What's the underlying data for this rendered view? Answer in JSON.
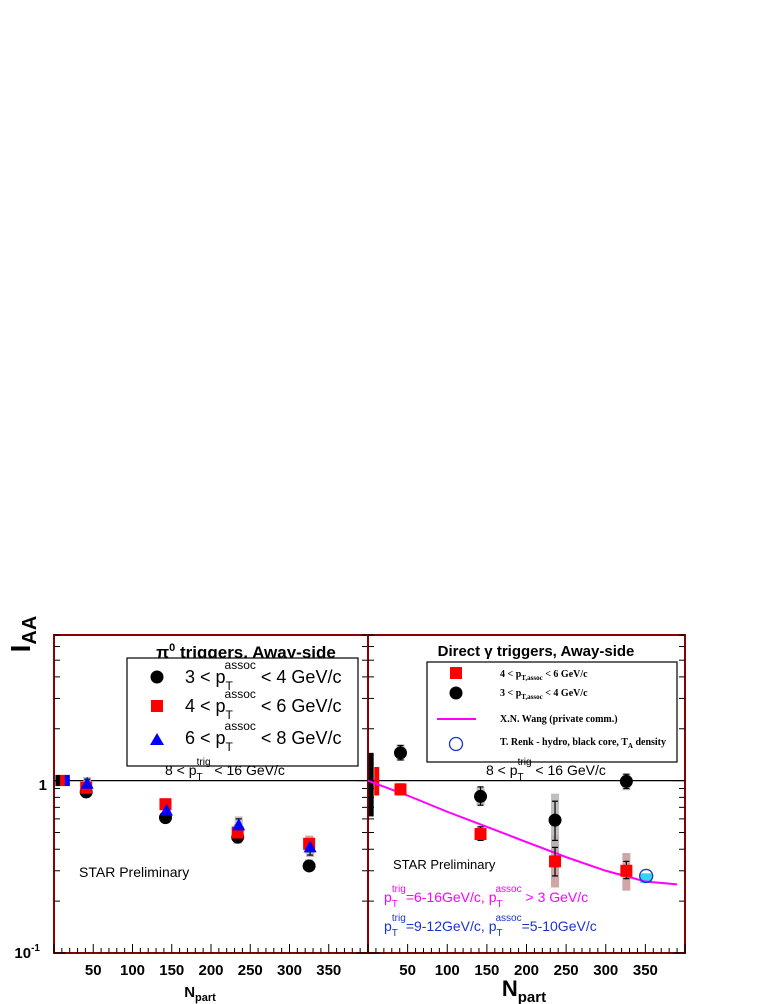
{
  "colors": {
    "frame": "#8b0000",
    "black_series": "#000000",
    "red_series": "#ff0000",
    "blue_series": "#0000ff",
    "magenta_curve": "#ff00ff",
    "renk_open": "#1a33cc",
    "renk_cyan": "#33d6f0",
    "syst_gray": "#b4b4b4",
    "syst_red": "#c89696"
  },
  "chart_data": [
    {
      "type": "scatter",
      "title": {
        "prefix": "π",
        "sup": "0",
        "rest": " triggers, Away-side"
      },
      "ylabel": {
        "main": "I",
        "sub": "AA"
      },
      "xlabel": {
        "main": "N",
        "sub": "part"
      },
      "y_scale": "log",
      "ylim": [
        0.1,
        7
      ],
      "xlim": [
        0,
        400
      ],
      "x_tick_labels": [
        {
          "v": 50,
          "t": "50"
        },
        {
          "v": 100,
          "t": "100"
        },
        {
          "v": 150,
          "t": "150"
        },
        {
          "v": 200,
          "t": "200"
        },
        {
          "v": 250,
          "t": "250"
        },
        {
          "v": 300,
          "t": "300"
        },
        {
          "v": 350,
          "t": "350"
        }
      ],
      "y_tick_labels": [
        {
          "v": 1,
          "t": "1"
        },
        {
          "v": 0.1,
          "t": "10",
          "sup": "-1"
        }
      ],
      "reference_line": 1,
      "legend": {
        "placement": "top-right",
        "entries": [
          {
            "marker": "circle",
            "color": "#000000",
            "pre": "3 < p",
            "sub": "T",
            "sup": "assoc",
            "post": " < 4 GeV/c"
          },
          {
            "marker": "square",
            "color": "#ff0000",
            "pre": "4 < p",
            "sub": "T",
            "sup": "assoc",
            "post": " < 6 GeV/c"
          },
          {
            "marker": "triangle",
            "color": "#0000ff",
            "pre": "6 < p",
            "sub": "T",
            "sup": "assoc",
            "post": " < 8 GeV/c"
          }
        ]
      },
      "trigger_range": {
        "pre": "8 < p",
        "sub": "T",
        "sup": "trig",
        "post": " < 16 GeV/c"
      },
      "annotation": "STAR Preliminary",
      "norm_bars": [
        {
          "x": 5,
          "color": "#000000",
          "lo": 0.93,
          "hi": 1.08
        },
        {
          "x": 11,
          "color": "#ff0000",
          "lo": 0.93,
          "hi": 1.08
        },
        {
          "x": 17,
          "color": "#0000ff",
          "lo": 0.93,
          "hi": 1.08
        }
      ],
      "series": [
        {
          "name": "3 < pT assoc < 4 GeV/c",
          "marker": "circle",
          "color": "#000000",
          "points": [
            {
              "x": 41,
              "y": 0.86,
              "err": [
                0.8,
                0.92
              ],
              "sys": [
                0.8,
                0.93
              ]
            },
            {
              "x": 142,
              "y": 0.61,
              "err": [
                0.58,
                0.64
              ],
              "sys": [
                0.57,
                0.65
              ]
            },
            {
              "x": 234,
              "y": 0.47,
              "err": [
                0.44,
                0.5
              ],
              "sys": [
                0.43,
                0.52
              ]
            },
            {
              "x": 325,
              "y": 0.32,
              "err": [
                0.3,
                0.34
              ],
              "sys": [
                0.3,
                0.35
              ]
            }
          ]
        },
        {
          "name": "4 < pT assoc < 6 GeV/c",
          "marker": "square",
          "color": "#ff0000",
          "points": [
            {
              "x": 41,
              "y": 0.91,
              "err": [
                0.86,
                0.96
              ],
              "sys": [
                0.84,
                0.99
              ]
            },
            {
              "x": 142,
              "y": 0.73,
              "err": [
                0.7,
                0.76
              ],
              "sys": [
                0.68,
                0.78
              ]
            },
            {
              "x": 234,
              "y": 0.5,
              "err": [
                0.47,
                0.53
              ],
              "sys": [
                0.45,
                0.56
              ]
            },
            {
              "x": 325,
              "y": 0.43,
              "err": [
                0.4,
                0.46
              ],
              "sys": [
                0.38,
                0.48
              ]
            }
          ]
        },
        {
          "name": "6 < pT assoc < 8 GeV/c",
          "marker": "triangle",
          "color": "#0000ff",
          "points": [
            {
              "x": 41,
              "y": 0.96,
              "err": [
                0.9,
                1.02
              ],
              "sys": [
                0.88,
                1.05
              ]
            },
            {
              "x": 142,
              "y": 0.67,
              "err": [
                0.62,
                0.72
              ],
              "sys": [
                0.61,
                0.74
              ]
            },
            {
              "x": 234,
              "y": 0.55,
              "err": [
                0.5,
                0.6
              ],
              "sys": [
                0.49,
                0.62
              ]
            },
            {
              "x": 325,
              "y": 0.41,
              "err": [
                0.37,
                0.45
              ],
              "sys": [
                0.36,
                0.47
              ]
            }
          ]
        }
      ]
    },
    {
      "type": "scatter",
      "title": {
        "prefix": "Direct γ triggers, Away-side"
      },
      "xlabel": {
        "main": "N",
        "sub": "part"
      },
      "y_scale": "log",
      "ylim": [
        0.1,
        7
      ],
      "xlim": [
        0,
        400
      ],
      "x_tick_labels": [
        {
          "v": 50,
          "t": "50"
        },
        {
          "v": 100,
          "t": "100"
        },
        {
          "v": 150,
          "t": "150"
        },
        {
          "v": 200,
          "t": "200"
        },
        {
          "v": 250,
          "t": "250"
        },
        {
          "v": 300,
          "t": "300"
        },
        {
          "v": 350,
          "t": "350"
        }
      ],
      "reference_line": 1,
      "legend": {
        "placement": "top",
        "entries": [
          {
            "marker": "square",
            "color": "#ff0000",
            "pre": "4 < p",
            "sub": "T,assoc",
            "post": " < 6 GeV/c"
          },
          {
            "marker": "circle",
            "color": "#000000",
            "pre": "3 < p",
            "sub": "T,assoc",
            "post": " < 4 GeV/c"
          },
          {
            "marker": "line",
            "color": "#ff00ff",
            "pre": "X.N. Wang (private comm.)"
          },
          {
            "marker": "open-circle",
            "color": "#1a33cc",
            "pre": "T. Renk - hydro, black core, T",
            "sub": "A",
            "post": " density"
          }
        ]
      },
      "trigger_range": {
        "pre": "8 < p",
        "sub": "T",
        "sup": "trig",
        "post": " < 16 GeV/c"
      },
      "annotation": "STAR Preliminary",
      "conditions": [
        {
          "color": "#ff00ff",
          "a_pre": "p",
          "a_sub": "T",
          "a_sup": "trig",
          "a_post": "=6-16GeV/c, p",
          "b_sub": "T",
          "b_sup": "assoc",
          "b_post": " > 3 GeV/c"
        },
        {
          "color": "#1a33cc",
          "a_pre": "p",
          "a_sub": "T",
          "a_sup": "trig",
          "a_post": "=9-12GeV/c, p",
          "b_sub": "T",
          "b_sup": "assoc",
          "b_post": "=5-10GeV/c"
        }
      ],
      "norm_bars": [
        {
          "x": 4,
          "color": "#000000",
          "lo": 0.62,
          "hi": 1.45
        },
        {
          "x": 11,
          "color": "#ff0000",
          "lo": 0.82,
          "hi": 1.2
        }
      ],
      "series": [
        {
          "name": "4 < pT,assoc < 6 GeV/c",
          "marker": "square",
          "color": "#ff0000",
          "points": [
            {
              "x": 41,
              "y": 0.89,
              "err": [
                0.83,
                0.95
              ],
              "sys": [
                0.82,
                0.97
              ]
            },
            {
              "x": 142,
              "y": 0.49,
              "err": [
                0.45,
                0.54
              ],
              "sys": [
                0.45,
                0.54
              ]
            },
            {
              "x": 236,
              "y": 0.34,
              "err": [
                0.28,
                0.41
              ],
              "sys": [
                0.24,
                0.48
              ]
            },
            {
              "x": 326,
              "y": 0.3,
              "err": [
                0.27,
                0.34
              ],
              "sys": [
                0.23,
                0.38
              ]
            }
          ]
        },
        {
          "name": "3 < pT,assoc < 4 GeV/c",
          "marker": "circle",
          "color": "#000000",
          "points": [
            {
              "x": 41,
              "y": 1.45,
              "err": [
                1.32,
                1.6
              ],
              "sys": [
                1.3,
                1.62
              ]
            },
            {
              "x": 142,
              "y": 0.81,
              "err": [
                0.72,
                0.92
              ],
              "sys": [
                0.72,
                0.92
              ]
            },
            {
              "x": 236,
              "y": 0.59,
              "err": [
                0.45,
                0.76
              ],
              "sys": [
                0.4,
                0.84
              ]
            },
            {
              "x": 326,
              "y": 0.99,
              "err": [
                0.9,
                1.09
              ],
              "sys": [
                0.88,
                1.1
              ]
            }
          ]
        },
        {
          "name": "X.N. Wang (private comm.)",
          "marker": "line",
          "color": "#ff00ff",
          "x": [
            0,
            50,
            100,
            150,
            200,
            250,
            300,
            350,
            390
          ],
          "y": [
            1.0,
            0.82,
            0.66,
            0.54,
            0.44,
            0.36,
            0.3,
            0.26,
            0.25
          ]
        },
        {
          "name": "T. Renk - hydro, black core, TA density",
          "marker": "open-circle",
          "color": "#1a33cc",
          "points": [
            {
              "x": 351,
              "y": 0.28
            }
          ],
          "band": {
            "x": 351,
            "lo": 0.255,
            "hi": 0.29,
            "color": "#33d6f0"
          }
        }
      ]
    }
  ]
}
